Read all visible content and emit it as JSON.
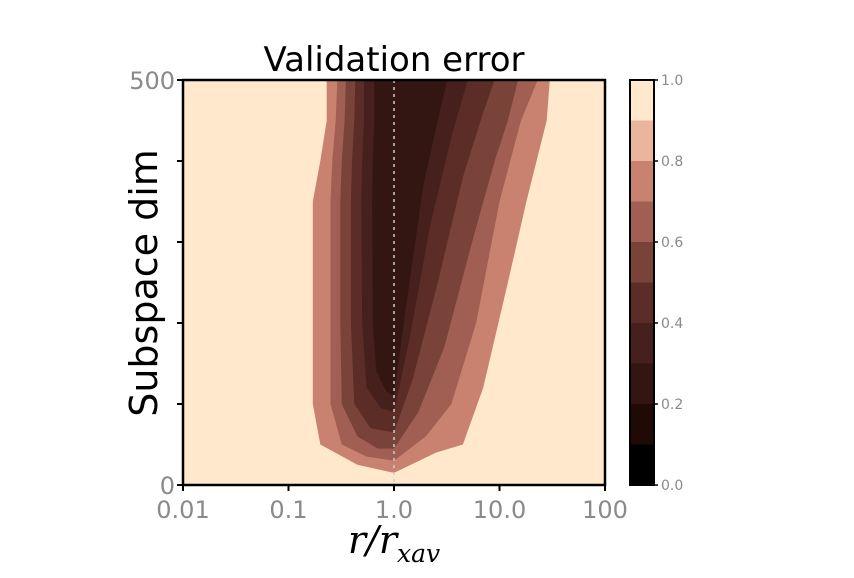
{
  "chart_data": {
    "type": "contour",
    "title": "Validation error",
    "xlabel_main": "r/r",
    "xlabel_sub": "xav",
    "ylabel": "Subspace dim",
    "x_scale": "log",
    "xlim": [
      0.01,
      100
    ],
    "ylim": [
      0,
      500
    ],
    "x_tick_labels": [
      "0.01",
      "0.1",
      "1.0",
      "10.0",
      "100"
    ],
    "x_tick_values": [
      0.01,
      0.1,
      1,
      10,
      100
    ],
    "y_tick_labels": [
      "0",
      "500"
    ],
    "y_tick_values": [
      0,
      100,
      200,
      300,
      400,
      500
    ],
    "reference_line_x": 1.0,
    "levels": [
      0.0,
      0.1,
      0.2,
      0.3,
      0.4,
      0.5,
      0.6,
      0.7,
      0.8,
      0.9,
      1.0
    ],
    "colorbar": {
      "range": [
        0.0,
        1.0
      ],
      "tick_labels": [
        "0.0",
        "0.2",
        "0.4",
        "0.6",
        "0.8",
        "1.0"
      ],
      "tick_values": [
        0.0,
        0.2,
        0.4,
        0.6,
        0.8,
        1.0
      ]
    },
    "contours": [
      {
        "level": 0.8,
        "left": [
          [
            0.23,
            500
          ],
          [
            0.23,
            450
          ],
          [
            0.2,
            400
          ],
          [
            0.17,
            350
          ],
          [
            0.17,
            200
          ],
          [
            0.17,
            100
          ],
          [
            0.2,
            50
          ],
          [
            0.45,
            25
          ],
          [
            1.0,
            15
          ]
        ],
        "right": [
          [
            1.0,
            15
          ],
          [
            2.5,
            40
          ],
          [
            4.5,
            50
          ],
          [
            7,
            120
          ],
          [
            12,
            250
          ],
          [
            18,
            350
          ],
          [
            28,
            450
          ],
          [
            30,
            500
          ]
        ]
      },
      {
        "level": 0.7,
        "left": [
          [
            0.29,
            500
          ],
          [
            0.28,
            450
          ],
          [
            0.26,
            400
          ],
          [
            0.25,
            350
          ],
          [
            0.25,
            200
          ],
          [
            0.25,
            100
          ],
          [
            0.32,
            50
          ],
          [
            0.55,
            35
          ],
          [
            1.0,
            30
          ]
        ],
        "right": [
          [
            1.0,
            30
          ],
          [
            2,
            60
          ],
          [
            3.5,
            100
          ],
          [
            6,
            200
          ],
          [
            10,
            350
          ],
          [
            16,
            450
          ],
          [
            23,
            500
          ]
        ]
      },
      {
        "level": 0.6,
        "left": [
          [
            0.35,
            500
          ],
          [
            0.34,
            450
          ],
          [
            0.32,
            400
          ],
          [
            0.31,
            350
          ],
          [
            0.31,
            200
          ],
          [
            0.32,
            100
          ],
          [
            0.45,
            60
          ],
          [
            0.7,
            45
          ],
          [
            1.0,
            45
          ]
        ],
        "right": [
          [
            1.0,
            45
          ],
          [
            1.7,
            90
          ],
          [
            3,
            170
          ],
          [
            5.5,
            300
          ],
          [
            9,
            400
          ],
          [
            12,
            450
          ],
          [
            15,
            500
          ]
        ]
      },
      {
        "level": 0.5,
        "left": [
          [
            0.43,
            500
          ],
          [
            0.42,
            450
          ],
          [
            0.4,
            400
          ],
          [
            0.39,
            350
          ],
          [
            0.39,
            200
          ],
          [
            0.42,
            100
          ],
          [
            0.6,
            70
          ],
          [
            1.0,
            65
          ]
        ],
        "right": [
          [
            1.0,
            65
          ],
          [
            1.5,
            130
          ],
          [
            2.6,
            250
          ],
          [
            4.5,
            380
          ],
          [
            7,
            460
          ],
          [
            9,
            500
          ]
        ]
      },
      {
        "level": 0.4,
        "left": [
          [
            0.52,
            500
          ],
          [
            0.52,
            450
          ],
          [
            0.5,
            400
          ],
          [
            0.49,
            350
          ],
          [
            0.5,
            200
          ],
          [
            0.55,
            120
          ],
          [
            0.75,
            95
          ],
          [
            1.0,
            90
          ]
        ],
        "right": [
          [
            1.0,
            90
          ],
          [
            1.4,
            180
          ],
          [
            2.2,
            320
          ],
          [
            3.5,
            430
          ],
          [
            5,
            500
          ]
        ]
      },
      {
        "level": 0.3,
        "left": [
          [
            0.65,
            500
          ],
          [
            0.65,
            450
          ],
          [
            0.63,
            400
          ],
          [
            0.62,
            350
          ],
          [
            0.63,
            200
          ],
          [
            0.68,
            140
          ],
          [
            0.85,
            115
          ],
          [
            1.0,
            110
          ]
        ],
        "right": [
          [
            1.0,
            110
          ],
          [
            1.3,
            220
          ],
          [
            1.9,
            370
          ],
          [
            2.7,
            460
          ],
          [
            3.2,
            500
          ]
        ]
      }
    ]
  }
}
